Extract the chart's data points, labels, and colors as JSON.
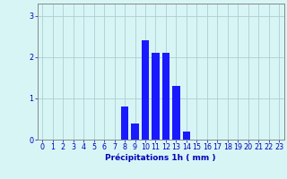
{
  "hours": [
    0,
    1,
    2,
    3,
    4,
    5,
    6,
    7,
    8,
    9,
    10,
    11,
    12,
    13,
    14,
    15,
    16,
    17,
    18,
    19,
    20,
    21,
    22,
    23
  ],
  "values": [
    0,
    0,
    0,
    0,
    0,
    0,
    0,
    0,
    0.8,
    0.4,
    2.4,
    2.1,
    2.1,
    1.3,
    0.2,
    0,
    0,
    0,
    0,
    0,
    0,
    0,
    0,
    0
  ],
  "bar_color": "#1a1aff",
  "background_color": "#d8f5f5",
  "grid_color": "#aacfcf",
  "xlabel": "Précipitations 1h ( mm )",
  "ylim": [
    0,
    3.3
  ],
  "yticks": [
    0,
    1,
    2,
    3
  ],
  "xtick_labels": [
    "0",
    "1",
    "2",
    "3",
    "4",
    "5",
    "6",
    "7",
    "8",
    "9",
    "10",
    "11",
    "12",
    "13",
    "14",
    "15",
    "16",
    "17",
    "18",
    "19",
    "20",
    "21",
    "22",
    "23"
  ],
  "tick_color": "#0000bb",
  "xlabel_color": "#0000bb",
  "ylabel_color": "#0000bb",
  "axis_label_fontsize": 6.5,
  "tick_fontsize": 5.8,
  "bar_width": 0.75
}
